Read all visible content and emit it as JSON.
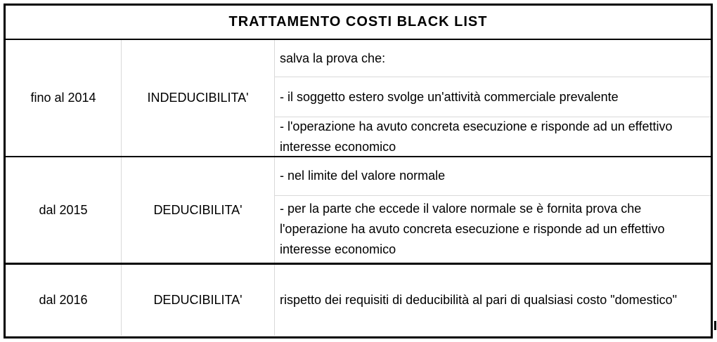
{
  "title": "TRATTAMENTO COSTI BLACK LIST",
  "rows": [
    {
      "period": "fino al 2014",
      "treatment": "INDEDUCIBILITA'",
      "details": [
        "salva la prova che:",
        "- il soggetto estero svolge un'attività commerciale prevalente",
        "- l'operazione ha avuto concreta esecuzione e risponde ad un effettivo interesse economico"
      ]
    },
    {
      "period": "dal 2015",
      "treatment": "DEDUCIBILITA'",
      "details": [
        "- nel limite del valore normale",
        "- per la parte che eccede il valore normale se è fornita prova che l'operazione ha avuto concreta esecuzione e risponde ad un effettivo interesse economico"
      ]
    },
    {
      "period": "dal 2016",
      "treatment": "DEDUCIBILITA'",
      "details": [
        "rispetto dei requisiti di deducibilità al pari di qualsiasi costo \"domestico\""
      ]
    }
  ],
  "colors": {
    "border_dark": "#000000",
    "border_light": "#d9d9d9",
    "text": "#000000",
    "background": "#ffffff"
  }
}
